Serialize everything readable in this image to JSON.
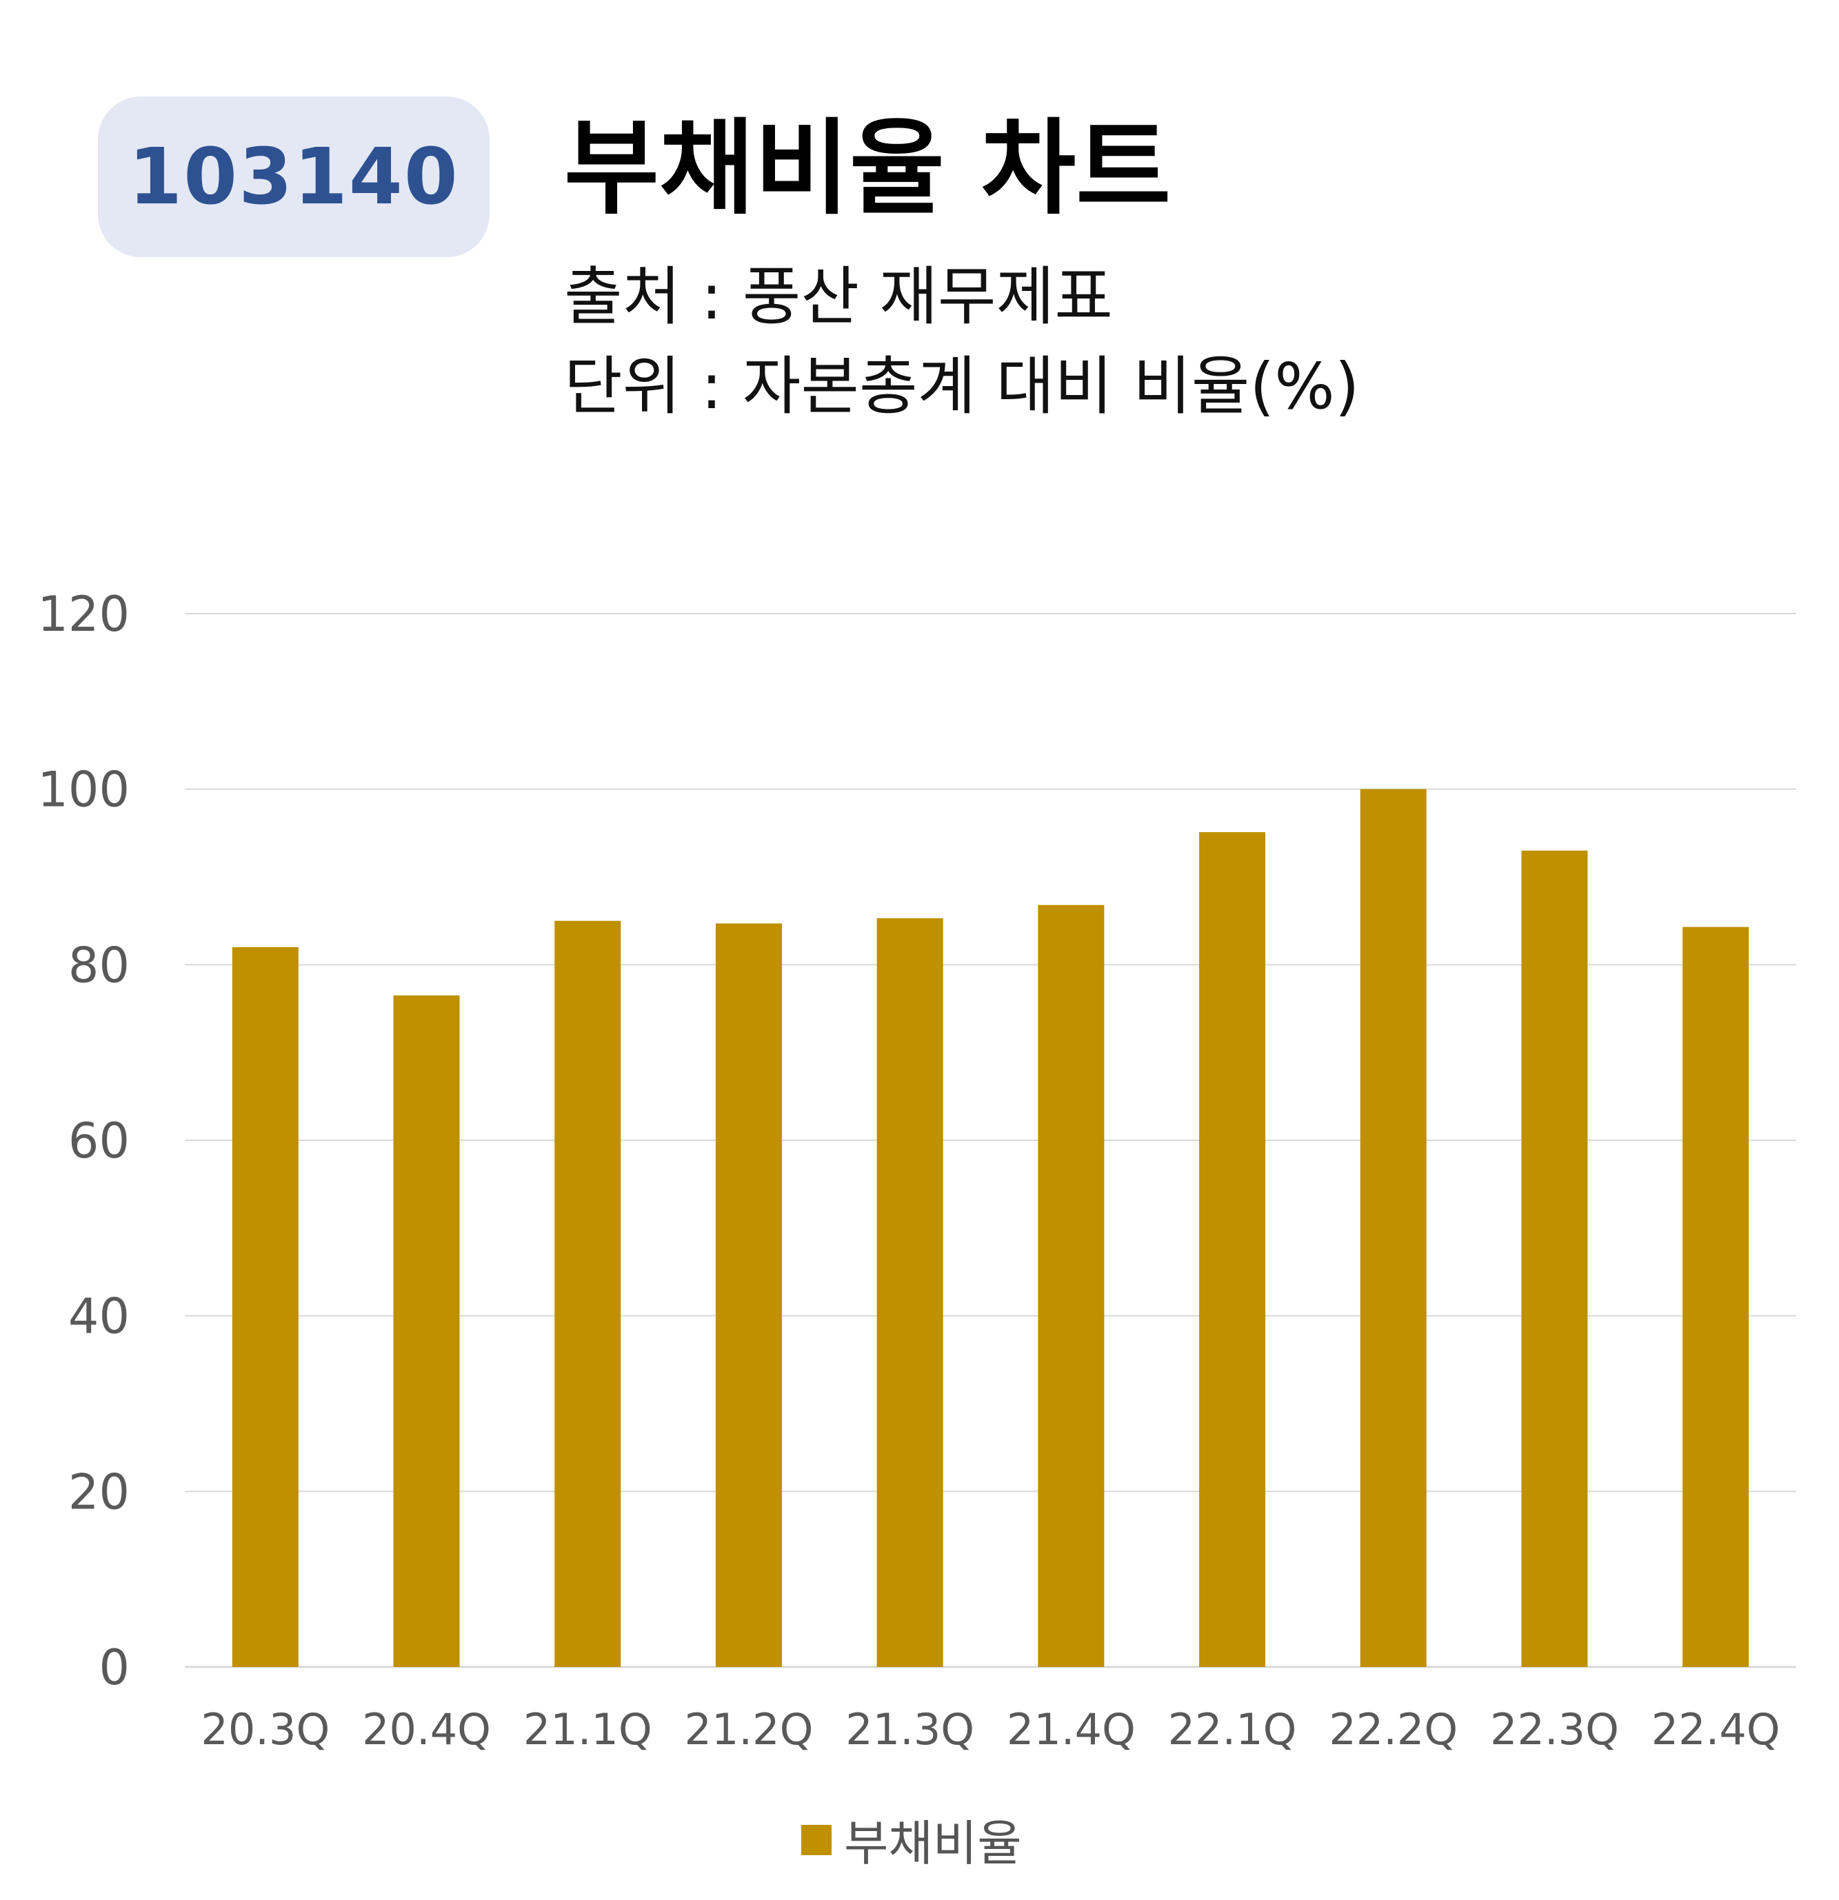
{
  "header": {
    "code": "103140",
    "title": "부채비율 차트",
    "source": "출처 : 풍산 재무제표",
    "unit": "단위 : 자본총계 대비 비율(%)"
  },
  "colors": {
    "bar": "#bf9000",
    "badge_bg": "#e3e8f4",
    "badge_text": "#2e5191",
    "grid": "#d9d9d9"
  },
  "chart_data": {
    "type": "bar",
    "categories": [
      "20.3Q",
      "20.4Q",
      "21.1Q",
      "21.2Q",
      "21.3Q",
      "21.4Q",
      "22.1Q",
      "22.2Q",
      "22.3Q",
      "22.4Q"
    ],
    "series": [
      {
        "name": "부채비율",
        "values": [
          82,
          76.5,
          85,
          84.7,
          85.3,
          86.8,
          95.1,
          100,
          93,
          84.3
        ]
      }
    ],
    "ylim": [
      0,
      120
    ],
    "yticks": [
      0,
      20,
      40,
      60,
      80,
      100,
      120
    ],
    "grid": true,
    "legend": "bottom"
  }
}
